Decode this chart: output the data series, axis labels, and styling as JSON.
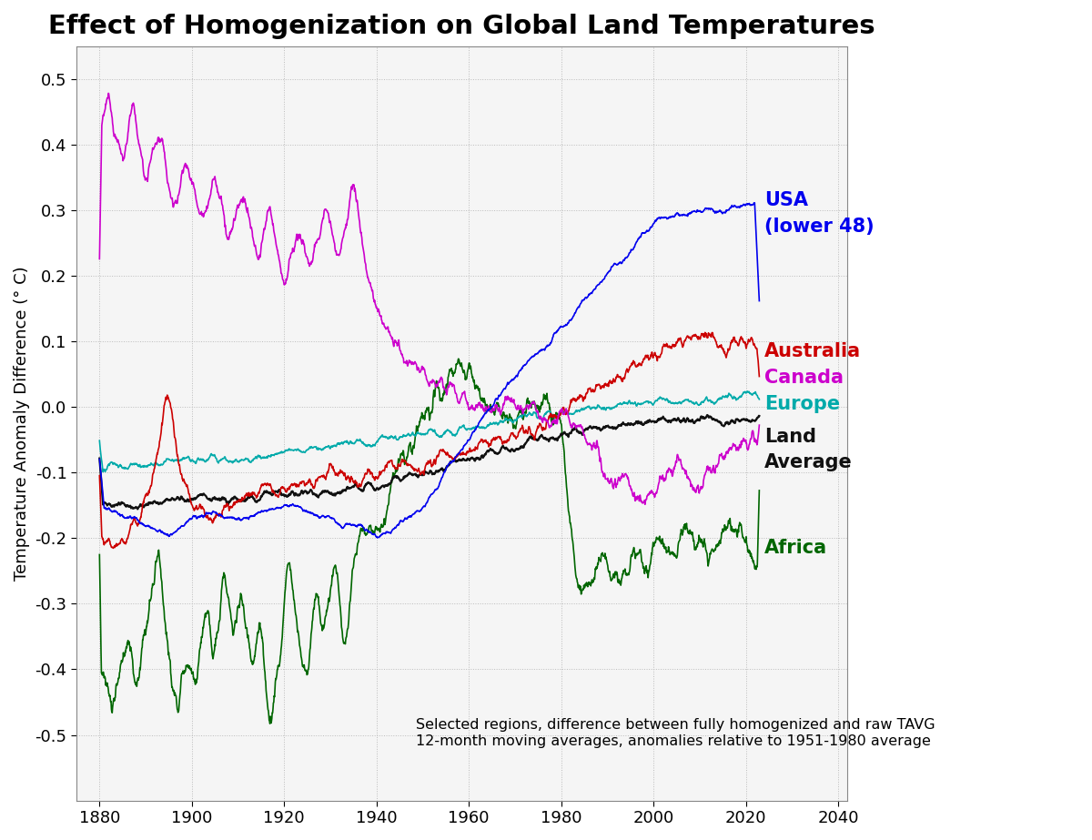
{
  "title": "Effect of Homogenization on Global Land Temperatures",
  "ylabel": "Temperature Anomaly Difference (° C)",
  "xlim": [
    1875,
    2042
  ],
  "ylim": [
    -0.6,
    0.55
  ],
  "yticks": [
    -0.5,
    -0.4,
    -0.3,
    -0.2,
    -0.1,
    0.0,
    0.1,
    0.2,
    0.3,
    0.4,
    0.5
  ],
  "xticks": [
    1880,
    1900,
    1920,
    1940,
    1960,
    1980,
    2000,
    2020,
    2040
  ],
  "background_color": "#ffffff",
  "plot_bg": "#f5f5f5",
  "annotation": "Selected regions, difference between fully homogenized and raw TAVG\n12-month moving averages, anomalies relative to 1951-1980 average",
  "colors": {
    "USA": "#0000ee",
    "Australia": "#cc0000",
    "Canada": "#cc00cc",
    "Europe": "#00aaaa",
    "Land": "#111111",
    "Africa": "#006600"
  }
}
